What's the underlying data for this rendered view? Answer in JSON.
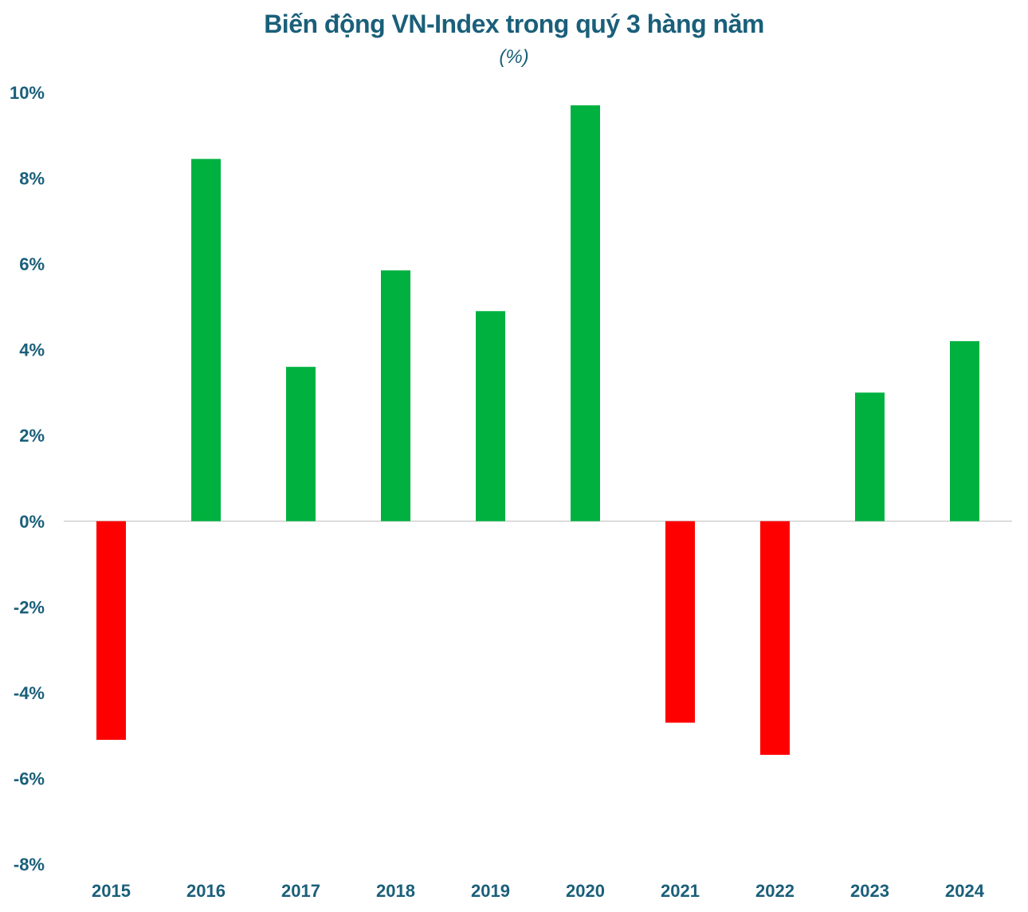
{
  "chart_data": {
    "type": "bar",
    "title": "Biến động VN-Index trong quý 3 hàng năm",
    "subtitle": "(%)",
    "categories": [
      "2015",
      "2016",
      "2017",
      "2018",
      "2019",
      "2020",
      "2021",
      "2022",
      "2023",
      "2024"
    ],
    "values": [
      -5.1,
      8.45,
      3.6,
      5.85,
      4.9,
      9.7,
      -4.7,
      -5.45,
      3.0,
      4.2
    ],
    "ylim": [
      -8,
      10
    ],
    "yticks": [
      10,
      8,
      6,
      4,
      2,
      0,
      -2,
      -4,
      -6,
      -8
    ],
    "ytick_labels": [
      "10%",
      "8%",
      "6%",
      "4%",
      "2%",
      "0%",
      "-2%",
      "-4%",
      "-6%",
      "-8%"
    ],
    "grid": false,
    "legend": "none",
    "colors": {
      "positive": "#00b140",
      "negative": "#ff0000",
      "axis_text": "#1a5f7a",
      "zero_line": "#d0d0d0"
    }
  }
}
